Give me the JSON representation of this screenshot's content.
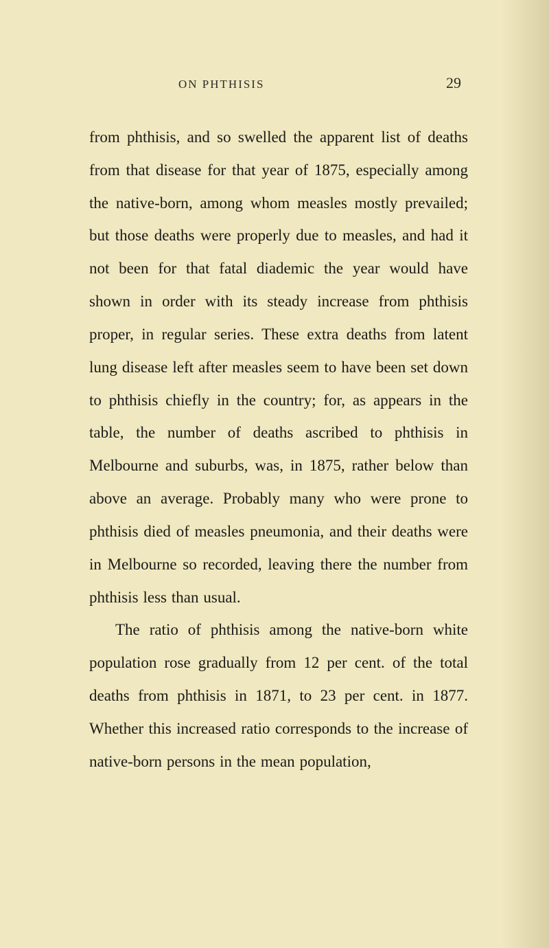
{
  "page": {
    "running_head": "ON PHTHISIS",
    "number": "29",
    "background_color": "#f0e8c0",
    "text_color": "#1a1a18",
    "font_size_body": 23,
    "font_size_header": 17,
    "font_size_page_number": 22,
    "line_height": 2.08,
    "paragraphs": [
      {
        "indent": false,
        "text": "from phthisis, and so swelled the apparent list of deaths from that disease for that year of 1875, especially among the native-born, among whom measles mostly prevailed; but those deaths were properly due to measles, and had it not been for that fatal diademic the year would have shown in order with its steady increase from phthisis proper, in regular series. These extra deaths from latent lung disease left after measles seem to have been set down to phthisis chiefly in the country; for, as appears in the table, the number of deaths ascribed to phthisis in Melbourne and suburbs, was, in 1875, rather below than above an average. Probably many who were prone to phthisis died of measles pneumonia, and their deaths were in Melbourne so recorded, leaving there the number from phthisis less than usual."
      },
      {
        "indent": true,
        "text": "The ratio of phthisis among the native-born white population rose gradually from 12 per cent. of the total deaths from phthisis in 1871, to 23 per cent. in 1877. Whether this increased ratio corresponds to the increase of native-born persons in the mean population,"
      }
    ]
  }
}
